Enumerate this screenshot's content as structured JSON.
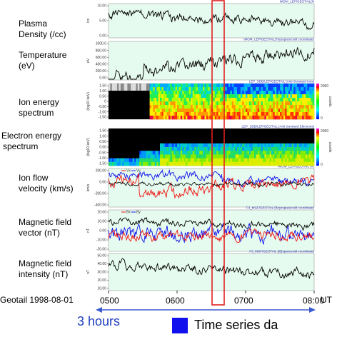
{
  "panels": [
    {
      "id": "density",
      "label_lines": [
        "Plasma",
        "Density (/cc)"
      ],
      "title": "IMOM_LEP/GEOTAIL(N",
      "units": "/cc",
      "ticks": [
        "10.00",
        "5.00",
        "0.00"
      ]
    },
    {
      "id": "temperature",
      "label_lines": [
        "Temperature",
        "(eV)"
      ],
      "title": "IMOM_LEP/GEOTAIL(Tsysspacecraft coordinate)",
      "units": "eV",
      "ticks": [
        "1000.0",
        "800.00",
        "600.00",
        "400.00",
        "200.00",
        "0.00"
      ]
    },
    {
      "id": "ion_spec",
      "label_lines": [
        "Ion energy",
        "spectrum"
      ],
      "title": "LEP_SDB/LEP/GEOTAIL (Anti-Sunward Ions)",
      "units": "(log10 keV)",
      "ticks": [
        "1.50",
        "1.00",
        "0.50",
        "0",
        "-0.50",
        "-1.00",
        "-1.50"
      ]
    },
    {
      "id": "elec_spec",
      "label_lines": [
        "Electron energy",
        "spectrum"
      ],
      "title": "LEP_SDB/LEP/GEOTAIL (Anti-Sunward Electrons)",
      "units": "(log10 keV)",
      "ticks": [
        "1.50",
        "1.00",
        "0.50",
        "0.00",
        "-0.50",
        "-1.00",
        "-1.50"
      ]
    },
    {
      "id": "ion_flow",
      "label_lines": [
        "Ion flow",
        "velocity (km/s)"
      ],
      "title": "IMOM_LEP/GEOTAIL (V)",
      "units": "km/s",
      "ticks": [
        "200.00",
        "0.00",
        "-200.00",
        "-400.00"
      ],
      "legend": [
        "Vx",
        "Vy"
      ]
    },
    {
      "id": "mag_vec",
      "label_lines": [
        "Magnetic field",
        "vector (nT)"
      ],
      "title": "F3_MGF/GEOTAIL (Bxyzspacecraft coordinate)",
      "units": "nT",
      "ticks": [
        "20.00",
        "10.00",
        "0.00",
        "-10.00",
        "-20.00"
      ],
      "legend": [
        "Bx",
        "By"
      ]
    },
    {
      "id": "mag_int",
      "label_lines": [
        "Magnetic field",
        "intensity (nT)"
      ],
      "title": "F3_MGF/GEOTAIL (|B|spacecraft coordinate)",
      "units": "nT",
      "ticks": [
        "50.00",
        "40.00",
        "30.00",
        "20.00",
        "10.00"
      ]
    }
  ],
  "colorbar": {
    "label": "counts",
    "ticks": [
      "2000",
      "0"
    ]
  },
  "x_axis": {
    "source_label": "Geotail 1998-08-01",
    "ticks": [
      "0500",
      "0600",
      "0700",
      "08:00"
    ],
    "unit": "UT"
  },
  "annotation": {
    "span_label": "3 hours",
    "legend_text": "Time series da"
  },
  "colors": {
    "panel_bg": "#e6fbef",
    "highlight": "#e02020",
    "arrow": "#3b5bd0",
    "legend_box": "#1111ee",
    "series_red": "#ee1111",
    "series_blue": "#1111ee",
    "series_black": "#000000"
  },
  "chart_data": {
    "type": "line",
    "x_range": [
      "05:00",
      "08:00"
    ],
    "highlight_window": [
      "06:42",
      "06:52"
    ],
    "series": []
  }
}
